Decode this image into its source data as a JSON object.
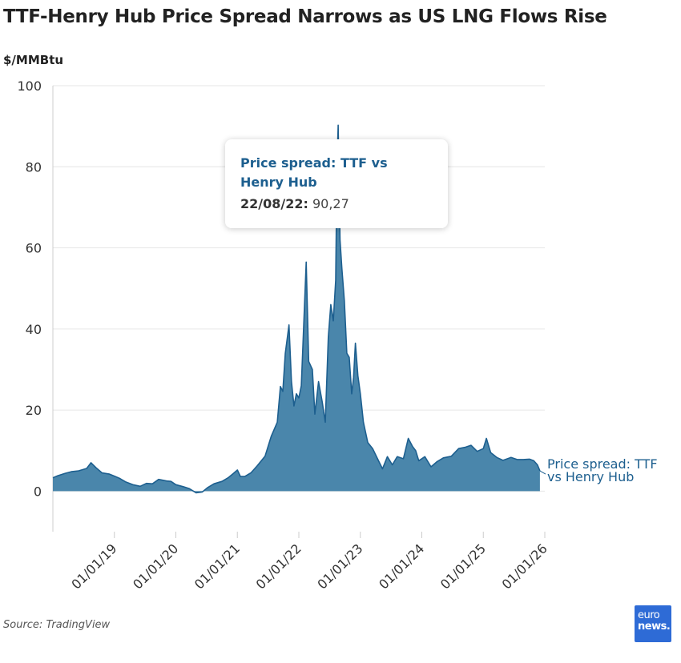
{
  "title": "TTF-Henry Hub Price Spread Narrows as US LNG Flows Rise",
  "unit_label": "$/MMBtu",
  "source": "Source: TradingView",
  "logo": {
    "line1": "euro",
    "line2": "news."
  },
  "tooltip": {
    "series_name_line1": "Price spread: TTF vs",
    "series_name_line2": "Henry Hub",
    "date_label": "22/08/22:",
    "value_text": "90,27"
  },
  "colors": {
    "fill": "#4a86ab",
    "line": "#1d5f8f",
    "grid": "#e6e6e6",
    "axis": "#cccccc"
  },
  "chart_data": {
    "type": "area",
    "title": "TTF-Henry Hub Price Spread Narrows as US LNG Flows Rise",
    "ylabel": "$/MMBtu",
    "xlabel": "",
    "ylim": [
      -10,
      100
    ],
    "yticks": [
      0,
      20,
      40,
      60,
      80,
      100
    ],
    "x_range": [
      2018.0,
      2026.0
    ],
    "xticks": [
      {
        "x": 2019,
        "label": "01/01/19"
      },
      {
        "x": 2020,
        "label": "01/01/20"
      },
      {
        "x": 2021,
        "label": "01/01/21"
      },
      {
        "x": 2022,
        "label": "01/01/22"
      },
      {
        "x": 2023,
        "label": "01/01/23"
      },
      {
        "x": 2024,
        "label": "01/01/24"
      },
      {
        "x": 2025,
        "label": "01/01/25"
      },
      {
        "x": 2026,
        "label": "01/01/26"
      }
    ],
    "grid": true,
    "series": [
      {
        "name": "Price spread: TTF vs Henry Hub",
        "label_line1": "Price spread: TTF",
        "label_line2": "vs Henry Hub",
        "points": [
          [
            2018.0,
            3.3
          ],
          [
            2018.08,
            3.8
          ],
          [
            2018.2,
            4.4
          ],
          [
            2018.3,
            4.8
          ],
          [
            2018.42,
            5.0
          ],
          [
            2018.55,
            5.6
          ],
          [
            2018.62,
            7.0
          ],
          [
            2018.7,
            5.8
          ],
          [
            2018.8,
            4.5
          ],
          [
            2018.92,
            4.2
          ],
          [
            2019.0,
            3.7
          ],
          [
            2019.08,
            3.2
          ],
          [
            2019.18,
            2.3
          ],
          [
            2019.3,
            1.6
          ],
          [
            2019.42,
            1.2
          ],
          [
            2019.52,
            1.9
          ],
          [
            2019.62,
            1.8
          ],
          [
            2019.72,
            2.9
          ],
          [
            2019.85,
            2.5
          ],
          [
            2019.92,
            2.4
          ],
          [
            2020.0,
            1.6
          ],
          [
            2020.12,
            1.1
          ],
          [
            2020.22,
            0.6
          ],
          [
            2020.33,
            -0.4
          ],
          [
            2020.43,
            -0.2
          ],
          [
            2020.52,
            0.9
          ],
          [
            2020.62,
            1.8
          ],
          [
            2020.75,
            2.4
          ],
          [
            2020.85,
            3.3
          ],
          [
            2020.93,
            4.3
          ],
          [
            2021.0,
            5.2
          ],
          [
            2021.05,
            3.6
          ],
          [
            2021.12,
            3.6
          ],
          [
            2021.22,
            4.5
          ],
          [
            2021.32,
            6.2
          ],
          [
            2021.45,
            8.6
          ],
          [
            2021.55,
            13.5
          ],
          [
            2021.65,
            17.0
          ],
          [
            2021.7,
            25.8
          ],
          [
            2021.74,
            24.6
          ],
          [
            2021.78,
            34.0
          ],
          [
            2021.84,
            41.0
          ],
          [
            2021.88,
            27.0
          ],
          [
            2021.92,
            21.0
          ],
          [
            2021.96,
            24.0
          ],
          [
            2022.0,
            23.0
          ],
          [
            2022.04,
            26.0
          ],
          [
            2022.12,
            56.5
          ],
          [
            2022.16,
            32.0
          ],
          [
            2022.22,
            30.0
          ],
          [
            2022.26,
            19.0
          ],
          [
            2022.32,
            27.0
          ],
          [
            2022.38,
            22.0
          ],
          [
            2022.43,
            17.0
          ],
          [
            2022.48,
            38.0
          ],
          [
            2022.52,
            46.0
          ],
          [
            2022.56,
            42.0
          ],
          [
            2022.6,
            52.0
          ],
          [
            2022.62,
            80.0
          ],
          [
            2022.64,
            90.27
          ],
          [
            2022.67,
            62.0
          ],
          [
            2022.7,
            55.0
          ],
          [
            2022.74,
            47.0
          ],
          [
            2022.78,
            34.0
          ],
          [
            2022.82,
            33.0
          ],
          [
            2022.86,
            24.0
          ],
          [
            2022.89,
            28.0
          ],
          [
            2022.92,
            36.5
          ],
          [
            2022.96,
            28.5
          ],
          [
            2023.0,
            24.0
          ],
          [
            2023.05,
            17.0
          ],
          [
            2023.12,
            12.0
          ],
          [
            2023.2,
            10.5
          ],
          [
            2023.28,
            8.0
          ],
          [
            2023.36,
            5.5
          ],
          [
            2023.44,
            8.5
          ],
          [
            2023.52,
            6.5
          ],
          [
            2023.6,
            8.5
          ],
          [
            2023.7,
            8.0
          ],
          [
            2023.78,
            13.0
          ],
          [
            2023.85,
            11.0
          ],
          [
            2023.9,
            10.0
          ],
          [
            2023.95,
            7.5
          ],
          [
            2024.05,
            8.5
          ],
          [
            2024.15,
            6.0
          ],
          [
            2024.25,
            7.3
          ],
          [
            2024.35,
            8.2
          ],
          [
            2024.48,
            8.6
          ],
          [
            2024.6,
            10.5
          ],
          [
            2024.7,
            10.8
          ],
          [
            2024.8,
            11.3
          ],
          [
            2024.9,
            9.8
          ],
          [
            2025.0,
            10.5
          ],
          [
            2025.05,
            13.0
          ],
          [
            2025.12,
            9.5
          ],
          [
            2025.22,
            8.3
          ],
          [
            2025.32,
            7.6
          ],
          [
            2025.45,
            8.3
          ],
          [
            2025.55,
            7.8
          ],
          [
            2025.65,
            7.8
          ],
          [
            2025.75,
            7.9
          ],
          [
            2025.82,
            7.5
          ],
          [
            2025.88,
            6.5
          ],
          [
            2025.92,
            5.0
          ]
        ]
      }
    ]
  }
}
